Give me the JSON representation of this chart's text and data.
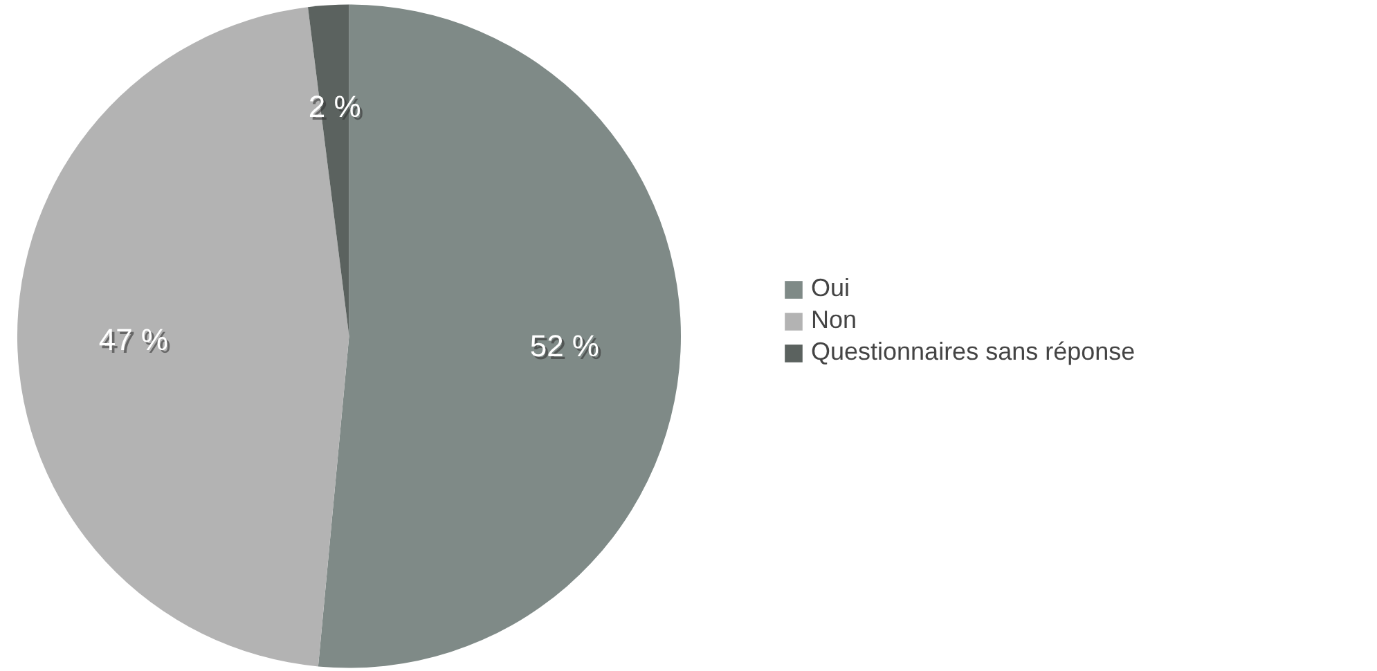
{
  "chart_data": {
    "type": "pie",
    "categories": [
      "Oui",
      "Non",
      "Questionnaires sans réponse"
    ],
    "values": [
      52,
      47,
      2
    ],
    "colors": [
      "#7f8a87",
      "#b3b3b3",
      "#5b625f"
    ],
    "value_labels": [
      "52 %",
      "47 %",
      "2 %"
    ],
    "legend": "right"
  }
}
